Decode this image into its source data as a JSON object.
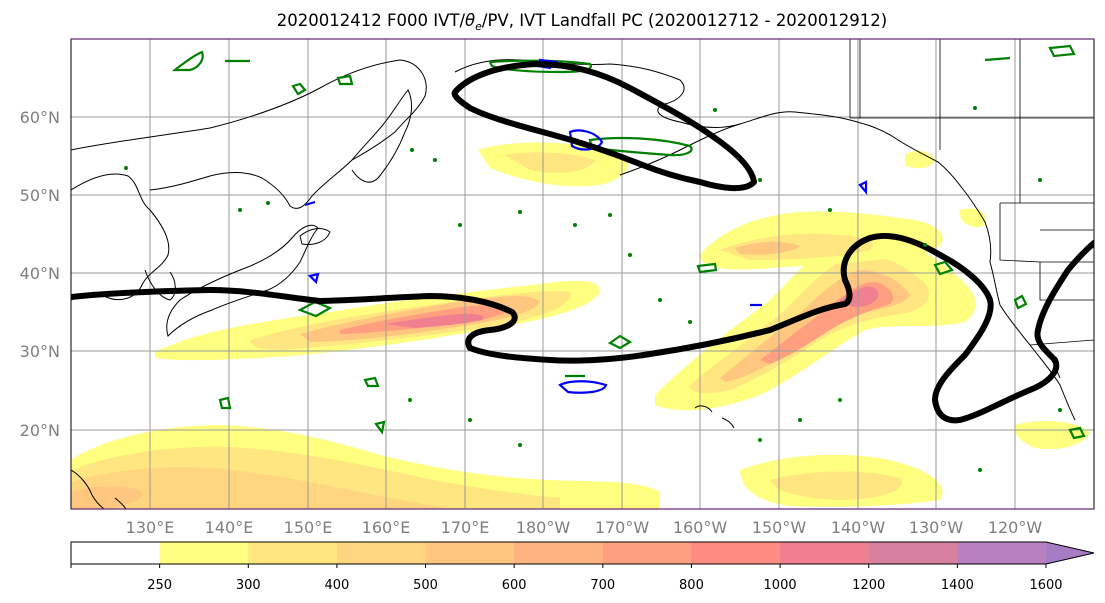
{
  "title": "2020012412 F000 IVT/θe/PV, IVT Landfall PC (2020012712 - 2020012912)",
  "title_parts": {
    "prefix": "2020012412 F000 IVT/",
    "theta": "θ",
    "theta_sub": "e",
    "suffix": "/PV, IVT Landfall PC (2020012712 - 2020012912)"
  },
  "latitude_labels": [
    "60°N",
    "50°N",
    "40°N",
    "30°N",
    "20°N"
  ],
  "longitude_labels": [
    "130°E",
    "140°E",
    "150°E",
    "160°E",
    "170°E",
    "180°W",
    "170°W",
    "160°W",
    "150°W",
    "140°W",
    "130°W",
    "120°W"
  ],
  "colorbar": {
    "ticks": [
      "250",
      "300",
      "400",
      "500",
      "600",
      "700",
      "800",
      "1000",
      "1200",
      "1400",
      "1600"
    ],
    "colors": [
      "#ffffff",
      "#ffff80",
      "#ffe680",
      "#ffd580",
      "#ffc680",
      "#ffb380",
      "#ff9f80",
      "#ff8c80",
      "#f08090",
      "#d880a0",
      "#b880c0",
      "#a87cc4"
    ]
  },
  "layer_colors": {
    "pc_contour": "#000000",
    "theta_e_contour": "#008000",
    "pv_contour": "#0000ff",
    "coastline": "#000000",
    "gridline": "#9a9a9a"
  }
}
